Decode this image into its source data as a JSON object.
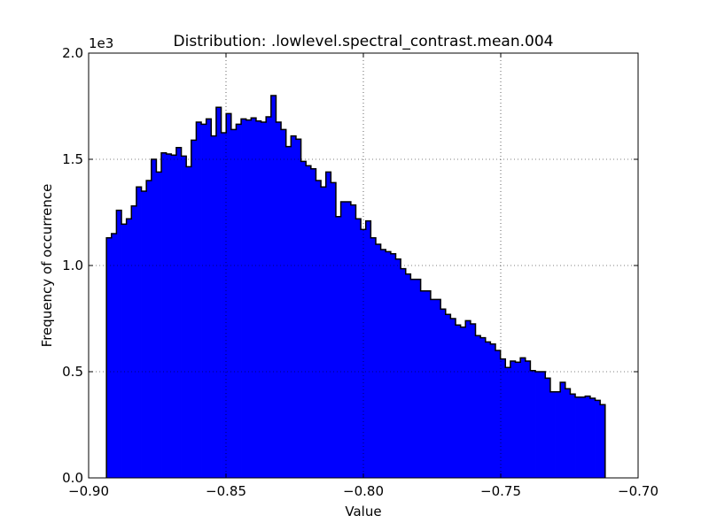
{
  "chart_data": {
    "type": "bar",
    "title": "Distribution: .lowlevel.spectral_contrast.mean.004",
    "xlabel": "Value",
    "ylabel": "Frequency of occurrence",
    "y_offset_label": "1e3",
    "xlim": [
      -0.9,
      -0.7
    ],
    "ylim": [
      0,
      2000
    ],
    "x_ticks": [
      -0.9,
      -0.85,
      -0.8,
      -0.75,
      -0.7
    ],
    "x_tick_labels": [
      "−0.90",
      "−0.85",
      "−0.80",
      "−0.75",
      "−0.70"
    ],
    "y_ticks": [
      0,
      500,
      1000,
      1500,
      2000
    ],
    "y_tick_labels": [
      "0.0",
      "0.5",
      "1.0",
      "1.5",
      "2.0"
    ],
    "grid": true,
    "bar_color": "#0000ff",
    "bin_range": [
      -0.8935,
      -0.712
    ],
    "bins": 100,
    "values": [
      1130,
      1150,
      1260,
      1195,
      1220,
      1280,
      1370,
      1350,
      1400,
      1500,
      1440,
      1530,
      1525,
      1520,
      1555,
      1515,
      1465,
      1590,
      1675,
      1665,
      1690,
      1610,
      1745,
      1625,
      1715,
      1640,
      1665,
      1690,
      1685,
      1695,
      1680,
      1675,
      1700,
      1800,
      1675,
      1640,
      1560,
      1610,
      1595,
      1490,
      1470,
      1455,
      1400,
      1370,
      1440,
      1390,
      1230,
      1300,
      1300,
      1285,
      1220,
      1170,
      1210,
      1130,
      1100,
      1075,
      1065,
      1055,
      1030,
      985,
      960,
      935,
      935,
      880,
      880,
      840,
      840,
      795,
      770,
      750,
      720,
      710,
      740,
      725,
      670,
      660,
      640,
      630,
      600,
      560,
      520,
      550,
      545,
      565,
      550,
      505,
      500,
      500,
      470,
      405,
      405,
      450,
      420,
      395,
      380,
      380,
      385,
      375,
      365,
      345
    ]
  }
}
